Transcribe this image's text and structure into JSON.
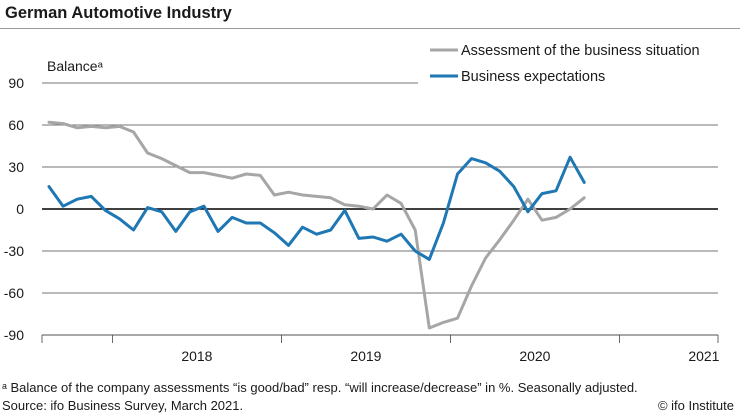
{
  "header": {
    "title": "German Automotive Industry"
  },
  "footnotes": {
    "note": "ᵃ Balance of the company assessments “is good/bad” resp. “will increase/decrease” in %. Seasonally adjusted.",
    "source": "Source: ifo Business Survey, March 2021.",
    "credit": "© ifo Institute"
  },
  "chart_data": {
    "type": "line",
    "title": "German Automotive Industry",
    "ylabel": "Balanceᵃ",
    "xlabel": "",
    "ylim": [
      -90,
      90
    ],
    "yticks": [
      90,
      60,
      30,
      0,
      -30,
      -60,
      -90
    ],
    "year_labels": [
      "2018",
      "2019",
      "2020",
      "2021"
    ],
    "months_start": "2017-08",
    "grid": true,
    "legend_position": "top-right",
    "series": [
      {
        "name": "Assessment of the business situation",
        "color": "#a6a6a6",
        "values": [
          62,
          61,
          58,
          59,
          58,
          59,
          55,
          40,
          36,
          31,
          26,
          26,
          24,
          22,
          25,
          24,
          10,
          12,
          10,
          9,
          8,
          3,
          2,
          0,
          10,
          4,
          -15,
          -85,
          -81,
          -78,
          -55,
          -35,
          -22,
          -8,
          7,
          -8,
          -6,
          0,
          8
        ]
      },
      {
        "name": "Business expectations",
        "color": "#1f77b4",
        "values": [
          16,
          2,
          7,
          9,
          -1,
          -7,
          -15,
          1,
          -2,
          -16,
          -2,
          2,
          -16,
          -6,
          -10,
          -10,
          -17,
          -26,
          -13,
          -18,
          -15,
          -1,
          -21,
          -20,
          -23,
          -18,
          -30,
          -36,
          -10,
          25,
          36,
          33,
          27,
          16,
          -2,
          11,
          13,
          37,
          19
        ]
      }
    ]
  }
}
